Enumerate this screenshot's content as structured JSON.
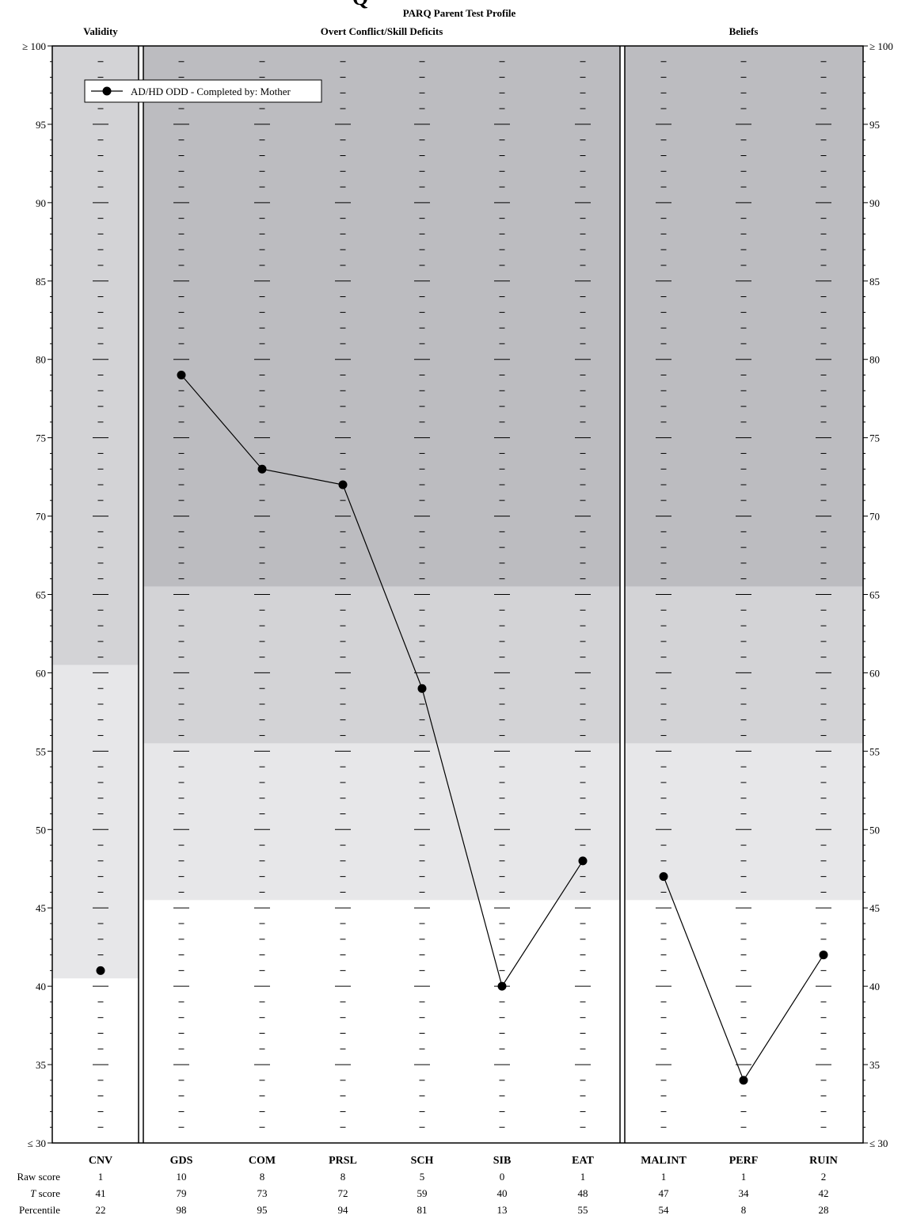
{
  "chart_data": {
    "type": "line",
    "title": "PARQ Parent Test Profile",
    "title_cutoff_glyph": "Q",
    "sections": [
      {
        "label": "Validity",
        "scales": [
          "CNV"
        ]
      },
      {
        "label": "Overt Conflict/Skill Deficits",
        "scales": [
          "GDS",
          "COM",
          "PRSL",
          "SCH",
          "SIB",
          "EAT"
        ]
      },
      {
        "label": "Beliefs",
        "scales": [
          "MALINT",
          "PERF",
          "RUIN"
        ]
      }
    ],
    "categories": [
      "CNV",
      "GDS",
      "COM",
      "PRSL",
      "SCH",
      "SIB",
      "EAT",
      "MALINT",
      "PERF",
      "RUIN"
    ],
    "ylim": [
      30,
      100
    ],
    "y_major_ticks": [
      100,
      95,
      90,
      85,
      80,
      75,
      70,
      65,
      60,
      55,
      50,
      45,
      40,
      35,
      30
    ],
    "y_tick_labels": [
      "≥ 100",
      "95",
      "90",
      "85",
      "80",
      "75",
      "70",
      "65",
      "60",
      "55",
      "50",
      "45",
      "40",
      "35",
      "≤ 30"
    ],
    "series": [
      {
        "name": "AD/HD ODD - Completed by: Mother",
        "values": [
          41,
          79,
          73,
          72,
          59,
          40,
          48,
          47,
          34,
          42
        ],
        "connect_groups": [
          [
            1,
            2,
            3,
            4,
            5,
            6
          ],
          [
            7,
            8,
            9
          ]
        ]
      }
    ],
    "legend": {
      "position": "top-left",
      "text": "AD/HD ODD - Completed by: Mother"
    },
    "score_rows": [
      {
        "label": "Raw score",
        "label_prefix": "",
        "label_italic": "",
        "values": [
          "1",
          "10",
          "8",
          "8",
          "5",
          "0",
          "1",
          "1",
          "1",
          "2"
        ]
      },
      {
        "label": "T score",
        "label_prefix": "",
        "label_italic": "T",
        "label_rest": " score",
        "values": [
          "41",
          "79",
          "73",
          "72",
          "59",
          "40",
          "48",
          "47",
          "34",
          "42"
        ]
      },
      {
        "label": "Percentile",
        "label_prefix": "",
        "label_italic": "",
        "values": [
          "22",
          "98",
          "95",
          "94",
          "81",
          "13",
          "55",
          "54",
          "8",
          "28"
        ]
      }
    ],
    "shading": {
      "colors": {
        "dark": "#bcbcc0",
        "medium": "#d3d3d6",
        "light": "#e7e7e9",
        "white": "#ffffff"
      },
      "validity_bands": [
        {
          "from": 60.5,
          "to": 100,
          "level": "medium"
        },
        {
          "from": 40.5,
          "to": 60.5,
          "level": "light"
        }
      ],
      "clinical_bands": [
        {
          "from": 65.5,
          "to": 100,
          "level": "dark"
        },
        {
          "from": 55.5,
          "to": 65.5,
          "level": "medium"
        },
        {
          "from": 45.5,
          "to": 55.5,
          "level": "light"
        }
      ]
    }
  }
}
